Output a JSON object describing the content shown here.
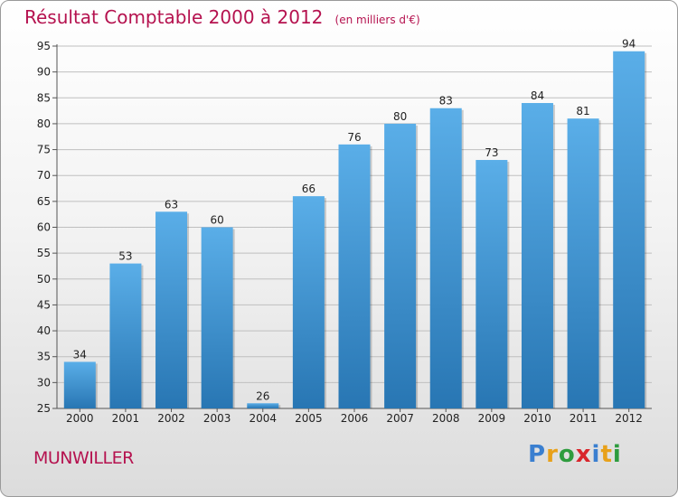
{
  "header": {
    "title": "Résultat Comptable 2000 à 2012",
    "unit": "(en milliers d'€)"
  },
  "commune": "MUNWILLER",
  "logo": {
    "letters": [
      "P",
      "r",
      "o",
      "x",
      "i",
      "t",
      "i"
    ],
    "colors": [
      "#3a7fd0",
      "#e8a11a",
      "#2e9c3e",
      "#d9252b",
      "#3a7fd0",
      "#e8a11a",
      "#2e9c3e"
    ]
  },
  "colors": {
    "bar_top": "#5aaee8",
    "bar_bottom": "#2876b3",
    "grid": "#bfbfbf",
    "title": "#b5124f"
  },
  "chart_data": {
    "type": "bar",
    "title": "Résultat Comptable 2000 à 2012",
    "xlabel": "",
    "ylabel": "",
    "ylim": [
      25,
      95
    ],
    "yticks": [
      25,
      30,
      35,
      40,
      45,
      50,
      55,
      60,
      65,
      70,
      75,
      80,
      85,
      90,
      95
    ],
    "grid": true,
    "categories": [
      "2000",
      "2001",
      "2002",
      "2003",
      "2004",
      "2005",
      "2006",
      "2007",
      "2008",
      "2009",
      "2010",
      "2011",
      "2012"
    ],
    "values": [
      34,
      53,
      63,
      60,
      26,
      66,
      76,
      80,
      83,
      73,
      84,
      81,
      94
    ]
  }
}
